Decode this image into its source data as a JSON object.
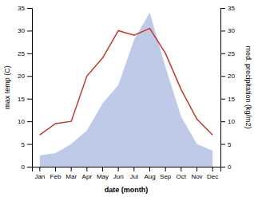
{
  "chart_data": {
    "type": "line",
    "categories": [
      "Jan",
      "Feb",
      "Mar",
      "Apr",
      "May",
      "Jun",
      "Jul",
      "Aug",
      "Sep",
      "Oct",
      "Nov",
      "Dec"
    ],
    "series": [
      {
        "type": "area",
        "axis": "y2",
        "color": "#bfc9e8",
        "values": [
          2.5,
          3,
          5,
          8,
          14,
          18,
          28,
          34,
          22,
          11,
          5,
          3.5
        ]
      },
      {
        "type": "line",
        "color": "#c0392b",
        "values": [
          7,
          9.5,
          10,
          20,
          24,
          30,
          29,
          30.5,
          25,
          17,
          10.5,
          7
        ]
      }
    ],
    "xlabel": "date (month)",
    "ylabel": "max temp (C)",
    "y2label": "med. precipitation (kg/m2)",
    "ylim": [
      0,
      35
    ],
    "yticks": [
      0,
      5,
      10,
      15,
      20,
      25,
      30,
      35
    ],
    "y2lim": [
      0,
      35
    ],
    "y2ticks": [
      0,
      5,
      10,
      15,
      20,
      25,
      30,
      35
    ]
  }
}
